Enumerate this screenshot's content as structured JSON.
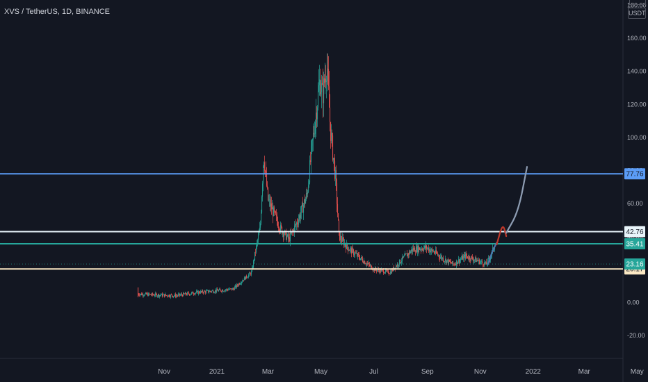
{
  "header": {
    "symbol": "XVS / TetherUS, 1D, BINANCE",
    "currency": "USDT"
  },
  "chart_data": {
    "type": "candlestick",
    "title": "XVS / TetherUS, 1D, BINANCE",
    "y_tick_labels": [
      "180.00",
      "160.00",
      "140.00",
      "120.00",
      "100.00",
      "80.00",
      "60.00",
      "40.00",
      "20.00",
      "0.00",
      "-20.00"
    ],
    "y_ticks": [
      180,
      160,
      140,
      120,
      100,
      80,
      60,
      40,
      20,
      0,
      -20
    ],
    "x_tick_labels": [
      "Nov",
      "2021",
      "Mar",
      "May",
      "Jul",
      "Sep",
      "Nov",
      "2022",
      "Mar",
      "May"
    ],
    "x_ticks": [
      "2020-11-01",
      "2021-01-01",
      "2021-03-01",
      "2021-05-01",
      "2021-07-01",
      "2021-09-01",
      "2021-11-01",
      "2022-01-01",
      "2022-03-01",
      "2022-05-01"
    ],
    "ylim": [
      -34,
      183
    ],
    "grid": false,
    "colors": {
      "up": "#26a69a",
      "down": "#ef5350",
      "background": "#131722"
    },
    "price_path": [
      [
        "2020-10-02",
        5
      ],
      [
        "2020-10-20",
        4.5
      ],
      [
        "2020-11-15",
        4
      ],
      [
        "2020-12-10",
        6
      ],
      [
        "2021-01-01",
        7
      ],
      [
        "2021-01-20",
        8
      ],
      [
        "2021-02-01",
        14
      ],
      [
        "2021-02-10",
        18
      ],
      [
        "2021-02-15",
        32
      ],
      [
        "2021-02-20",
        45
      ],
      [
        "2021-02-24",
        90
      ],
      [
        "2021-03-01",
        62
      ],
      [
        "2021-03-15",
        45
      ],
      [
        "2021-03-25",
        38
      ],
      [
        "2021-04-05",
        50
      ],
      [
        "2021-04-15",
        65
      ],
      [
        "2021-04-20",
        90
      ],
      [
        "2021-04-30",
        135
      ],
      [
        "2021-05-03",
        125
      ],
      [
        "2021-05-08",
        145
      ],
      [
        "2021-05-12",
        105
      ],
      [
        "2021-05-18",
        75
      ],
      [
        "2021-05-22",
        40
      ],
      [
        "2021-06-01",
        33
      ],
      [
        "2021-06-15",
        27
      ],
      [
        "2021-07-01",
        20
      ],
      [
        "2021-07-20",
        18
      ],
      [
        "2021-08-01",
        25
      ],
      [
        "2021-08-15",
        32
      ],
      [
        "2021-08-31",
        33
      ],
      [
        "2021-09-10",
        30
      ],
      [
        "2021-09-20",
        26
      ],
      [
        "2021-10-01",
        23
      ],
      [
        "2021-10-15",
        28
      ],
      [
        "2021-10-25",
        26
      ],
      [
        "2021-11-08",
        23
      ],
      [
        "2021-11-13",
        28
      ],
      [
        "2021-11-18",
        35
      ]
    ],
    "projection": [
      {
        "color": "#4a78b0",
        "points": [
          [
            "2021-11-10",
            23
          ],
          [
            "2021-11-15",
            31
          ],
          [
            "2021-11-20",
            36
          ]
        ]
      },
      {
        "color": "#c0392b",
        "points": [
          [
            "2021-11-20",
            35
          ],
          [
            "2021-11-27",
            48
          ],
          [
            "2021-12-01",
            40
          ]
        ]
      },
      {
        "color": "#8e9db3",
        "points": [
          [
            "2021-12-01",
            42
          ],
          [
            "2021-12-15",
            55
          ],
          [
            "2021-12-25",
            82
          ]
        ]
      }
    ],
    "levels": [
      {
        "value": 77.76,
        "label": "77.76",
        "line_color": "#5b9cf6",
        "badge_color": "#5b9cf6",
        "text_color": "#131722"
      },
      {
        "value": 42.76,
        "label": "42.76",
        "line_color": "#e8f4fa",
        "badge_color": "#e8f4fa",
        "text_color": "#131722"
      },
      {
        "value": 35.41,
        "label": "35.41",
        "line_color": "#26a69a",
        "badge_color": "#26a69a",
        "text_color": "#ffffff"
      },
      {
        "value": 20.17,
        "label": "20.17",
        "line_color": "#fbe8c4",
        "badge_color": "#fbe8c4",
        "text_color": "#131722"
      }
    ],
    "last_price": {
      "value": 23.16,
      "label": "23.16",
      "badge_color": "#26a69a",
      "text_color": "#ffffff"
    }
  }
}
